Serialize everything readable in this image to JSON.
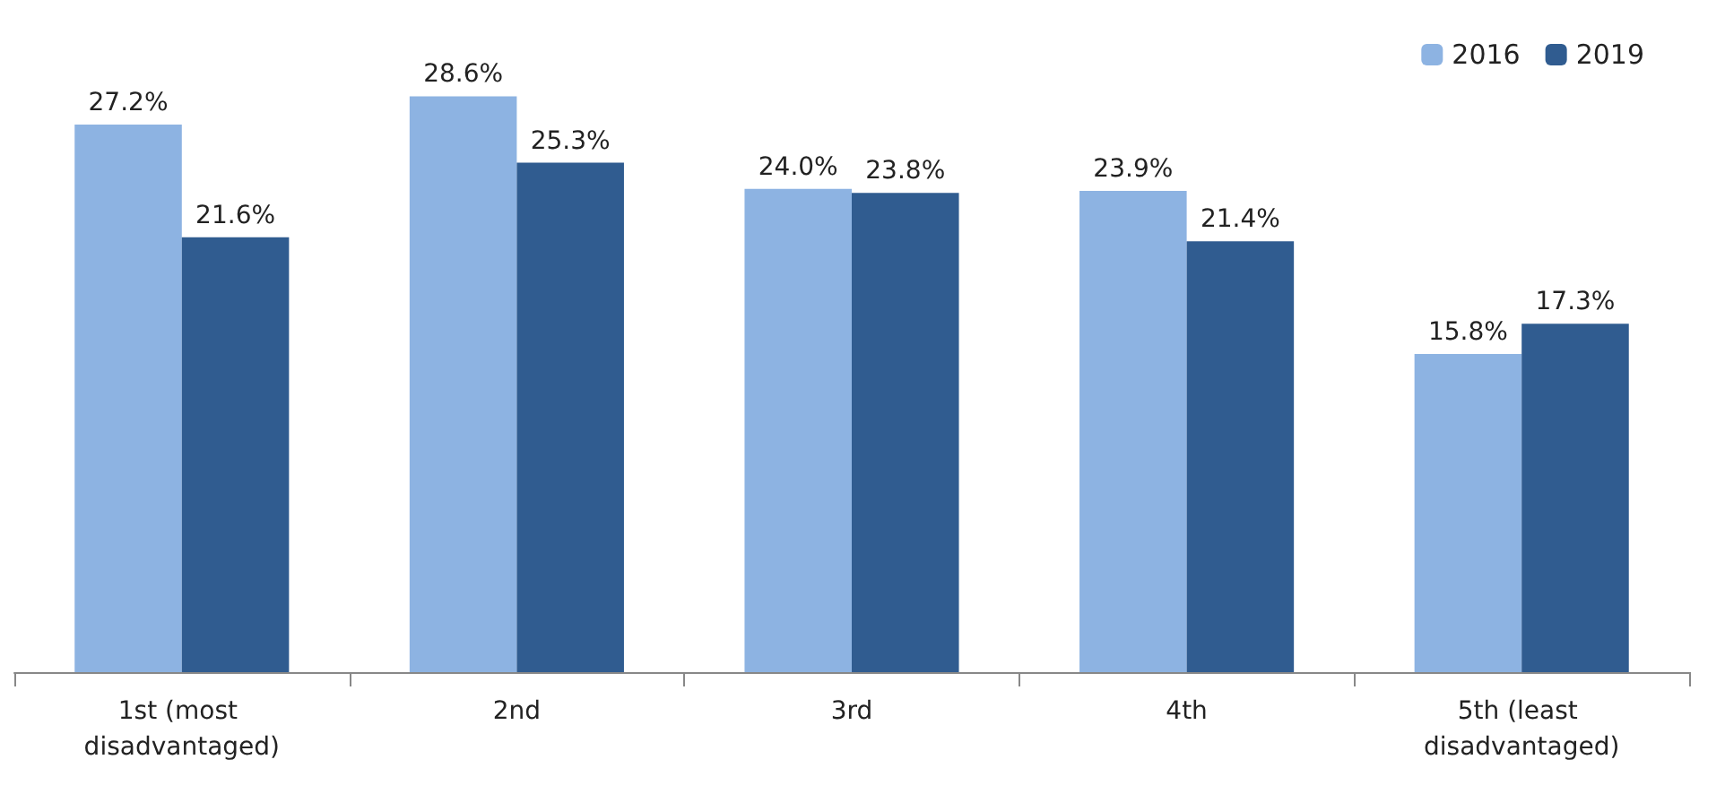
{
  "chart_data": {
    "type": "bar",
    "categories": [
      "1st (most disadvantaged)",
      "2nd",
      "3rd",
      "4th",
      "5th (least disadvantaged)"
    ],
    "series": [
      {
        "name": "2016",
        "color": "#8db3e2",
        "values": [
          27.2,
          28.6,
          24.0,
          23.9,
          15.8
        ],
        "value_labels": [
          "27.2%",
          "28.6%",
          "24.0%",
          "23.9%",
          "15.8%"
        ]
      },
      {
        "name": "2019",
        "color": "#305c90",
        "values": [
          21.6,
          25.3,
          23.8,
          21.4,
          17.3
        ],
        "value_labels": [
          "21.6%",
          "25.3%",
          "23.8%",
          "21.4%",
          "17.3%"
        ]
      }
    ],
    "legend": "top right",
    "grid": false
  }
}
